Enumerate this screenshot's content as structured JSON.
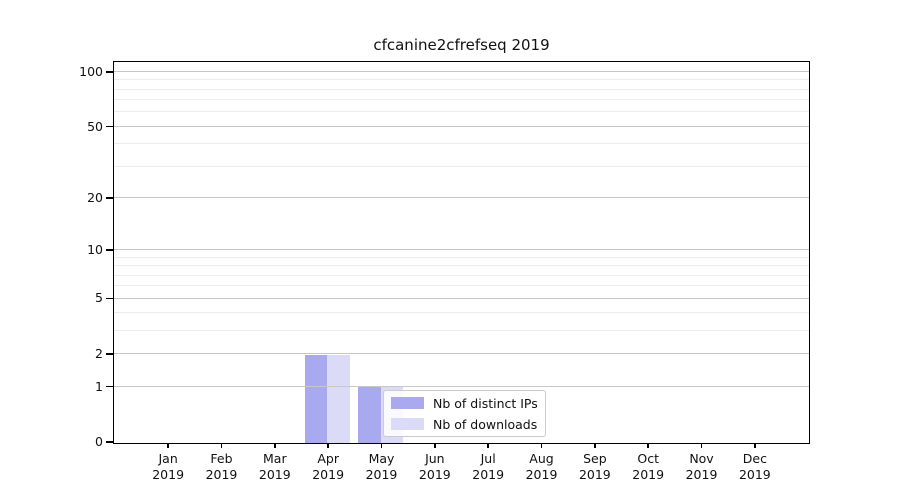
{
  "figure": {
    "background": "#ffffff",
    "text_color": "#111111",
    "spine_color": "#000000",
    "grid_major_color": "#c7c7c7",
    "grid_minor_color": "#ededed"
  },
  "chart_data": {
    "type": "bar",
    "title": "cfcanine2cfrefseq 2019",
    "xlabel": "",
    "ylabel": "",
    "x_axis": {
      "categories": [
        "Jan",
        "Feb",
        "Mar",
        "Apr",
        "May",
        "Jun",
        "Jul",
        "Aug",
        "Sep",
        "Oct",
        "Nov",
        "Dec"
      ],
      "year_label": "2019"
    },
    "y_axis": {
      "scale": "log1p",
      "ticks": [
        0,
        1,
        2,
        5,
        10,
        20,
        50,
        100
      ],
      "minor_gridlines": [
        3,
        4,
        6,
        7,
        8,
        9,
        30,
        40,
        60,
        70,
        80,
        90
      ],
      "ylim": [
        0,
        112
      ],
      "grid": "horizontal"
    },
    "series": [
      {
        "name": "Nb of distinct IPs",
        "color": "#a9a9f0",
        "values": [
          0,
          0,
          0,
          2,
          1,
          0,
          0,
          0,
          0,
          0,
          0,
          0
        ]
      },
      {
        "name": "Nb of downloads",
        "color": "#dbdbf8",
        "values": [
          0,
          0,
          0,
          2,
          1,
          0,
          0,
          0,
          0,
          0,
          0,
          0
        ]
      }
    ],
    "legend": {
      "position": "lower center-right"
    }
  }
}
